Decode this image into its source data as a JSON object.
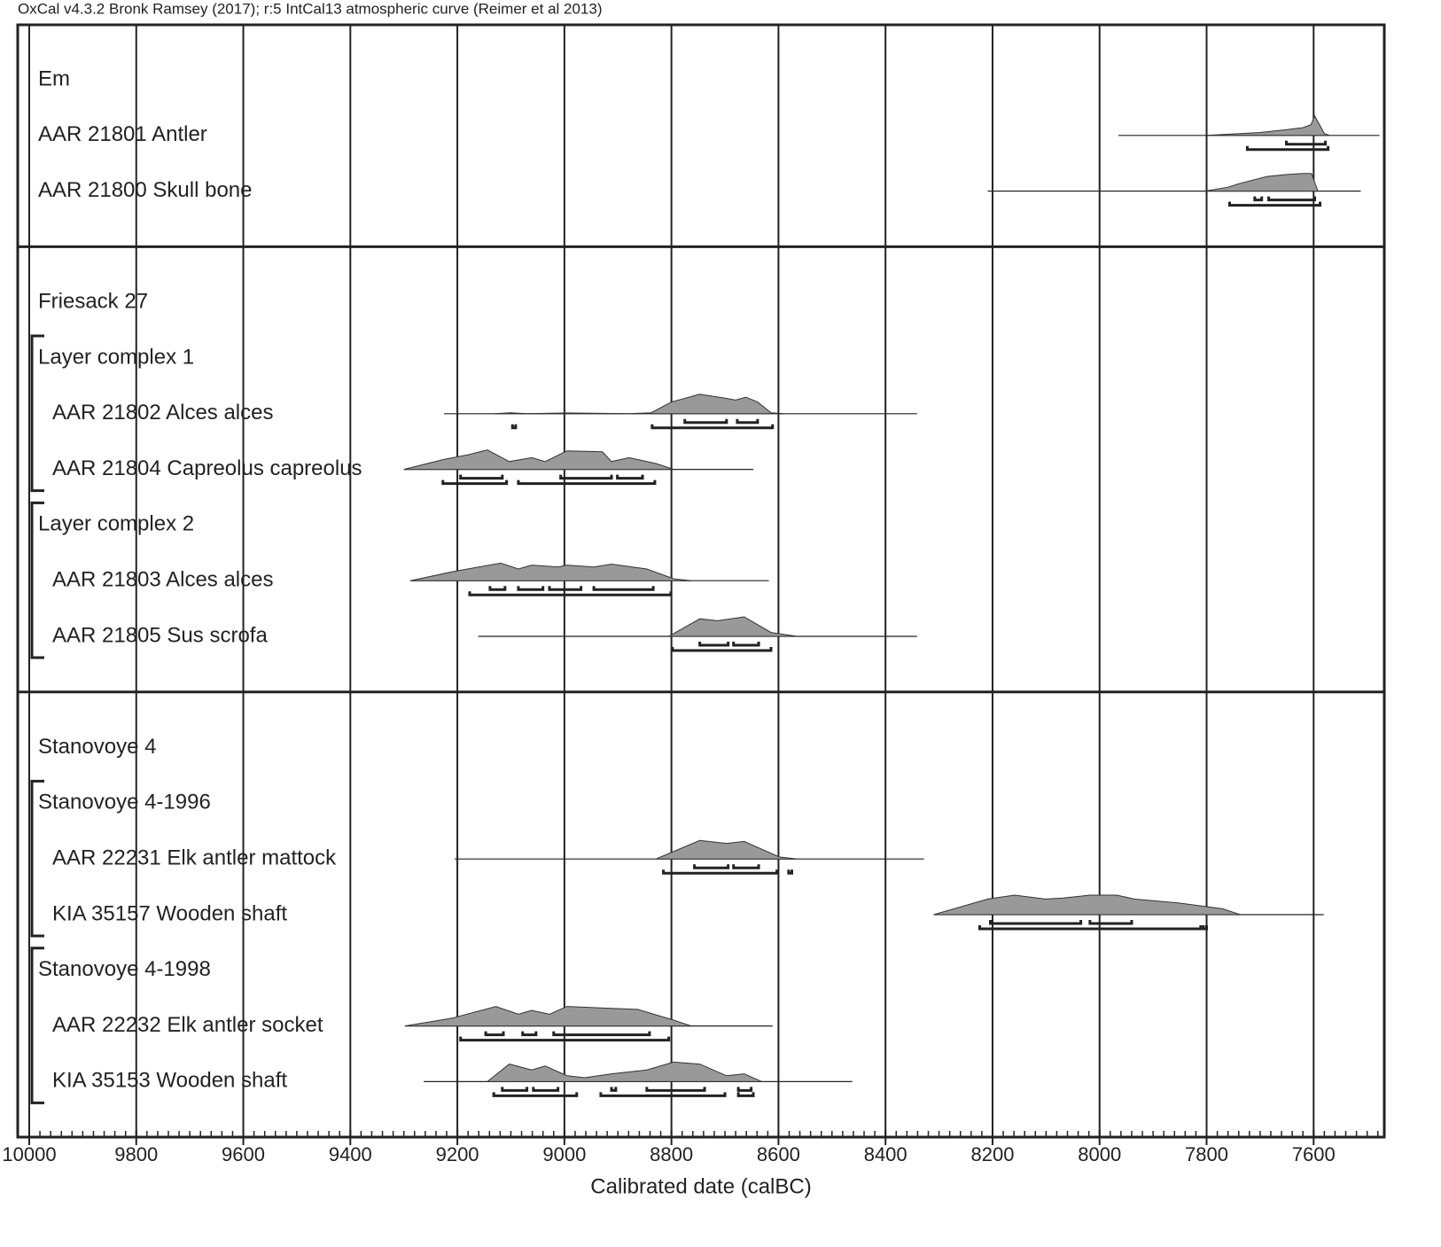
{
  "chart_data": {
    "type": "multiplot",
    "title": "OxCal v4.3.2 Bronk Ramsey (2017); r:5 IntCal13 atmospheric curve (Reimer et al 2013)",
    "xlabel": "Calibrated date (calBC)",
    "xlim": [
      10021.5,
      7468
    ],
    "xticks": [
      10000,
      9800,
      9600,
      9400,
      9200,
      9000,
      8800,
      8600,
      8400,
      8200,
      8000,
      7800,
      7600
    ],
    "minor_ticks_per_major": 10,
    "grid": true,
    "color": "#999999",
    "sections": [
      {
        "label": "Em",
        "samples": [
          {
            "label": "AAR 21801 Antler",
            "extent": [
              7965,
              7477
            ],
            "density": {
              "x": [
                7800,
                7700,
                7650,
                7620,
                7605,
                7598,
                7590,
                7580,
                7570
              ],
              "y": [
                0,
                0.15,
                0.3,
                0.4,
                0.55,
                1,
                0.6,
                0.1,
                0
              ]
            },
            "range_68": [
              [
                7651,
                7578
              ]
            ],
            "range_95": [
              [
                7724,
                7573
              ]
            ]
          },
          {
            "label": "AAR 21800 Skull bone",
            "extent": [
              8209,
              7512
            ],
            "density": {
              "x": [
                7803,
                7760,
                7737,
                7687,
                7650,
                7620,
                7604,
                7592
              ],
              "y": [
                0,
                0.2,
                0.4,
                0.75,
                0.85,
                0.9,
                0.9,
                0
              ]
            },
            "range_68": [
              [
                7710,
                7697
              ],
              [
                7684,
                7598
              ]
            ],
            "range_95": [
              [
                7757,
                7588
              ]
            ]
          }
        ]
      },
      {
        "label": "Friesack 27",
        "phases": [
          {
            "label": "Layer complex 1",
            "samples": [
              {
                "label": "AAR 21802 Alces alces",
                "extent": [
                  9225,
                  8341
                ],
                "density": {
                  "x": [
                    9130,
                    9100,
                    9070,
                    9000,
                    8880,
                    8838,
                    8800,
                    8747,
                    8700,
                    8680,
                    8661,
                    8639,
                    8614,
                    8590
                  ],
                  "y": [
                    0,
                    0.05,
                    0,
                    0.04,
                    0,
                    0.05,
                    0.6,
                    1,
                    0.8,
                    0.7,
                    0.85,
                    0.6,
                    0.05,
                    0
                  ]
                },
                "range_68": [
                  [
                    8775,
                    8697
                  ],
                  [
                    8677,
                    8639
                  ]
                ],
                "range_95": [
                  [
                    9097,
                    9091
                  ],
                  [
                    8836,
                    8611
                  ]
                ]
              },
              {
                "label": "AAR 21804 Capreolus capreolus",
                "extent": [
                  9300,
                  8647
                ],
                "density": {
                  "x": [
                    9300,
                    9227,
                    9180,
                    9144,
                    9103,
                    9061,
                    9036,
                    8995,
                    8929,
                    8912,
                    8879,
                    8829,
                    8796
                  ],
                  "y": [
                    0,
                    0.5,
                    0.75,
                    1,
                    0.4,
                    0.6,
                    0.4,
                    0.95,
                    0.9,
                    0.4,
                    0.6,
                    0.3,
                    0
                  ]
                },
                "range_68": [
                  [
                    9194,
                    9116
                  ],
                  [
                    9007,
                    8912
                  ],
                  [
                    8901,
                    8854
                  ]
                ],
                "range_95": [
                  [
                    9227,
                    9108
                  ],
                  [
                    9086,
                    8831
                  ]
                ]
              }
            ]
          },
          {
            "label": "Layer complex 2",
            "samples": [
              {
                "label": "AAR 21803 Alces alces",
                "extent": [
                  9288,
                  8618
                ],
                "density": {
                  "x": [
                    9288,
                    9202,
                    9119,
                    9086,
                    9061,
                    9012,
                    8995,
                    8945,
                    8912,
                    8846,
                    8796,
                    8763
                  ],
                  "y": [
                    0,
                    0.5,
                    0.9,
                    0.6,
                    0.8,
                    0.7,
                    0.8,
                    0.7,
                    0.85,
                    0.6,
                    0.1,
                    0
                  ]
                },
                "range_68": [
                  [
                    9139,
                    9111
                  ],
                  [
                    9086,
                    9040
                  ],
                  [
                    9028,
                    8969
                  ],
                  [
                    8945,
                    8834
                  ]
                ],
                "range_95": [
                  [
                    9177,
                    8801
                  ]
                ]
              },
              {
                "label": "AAR 21805 Sus scrofa",
                "extent": [
                  9161,
                  8341
                ],
                "density": {
                  "x": [
                    8805,
                    8747,
                    8714,
                    8664,
                    8614,
                    8565
                  ],
                  "y": [
                    0,
                    0.9,
                    0.8,
                    1,
                    0.2,
                    0
                  ]
                },
                "range_68": [
                  [
                    8747,
                    8694
                  ],
                  [
                    8684,
                    8637
                  ]
                ],
                "range_95": [
                  [
                    8798,
                    8614
                  ]
                ]
              }
            ]
          }
        ]
      },
      {
        "label": "Stanovoye 4",
        "phases": [
          {
            "label": "Stanovoye 4-1996",
            "samples": [
              {
                "label": "AAR 22231 Elk antler mattock",
                "extent": [
                  9205,
                  8328
                ],
                "density": {
                  "x": [
                    8829,
                    8747,
                    8697,
                    8664,
                    8631,
                    8598,
                    8565
                  ],
                  "y": [
                    0,
                    0.95,
                    0.8,
                    0.9,
                    0.5,
                    0.1,
                    0
                  ]
                },
                "range_68": [
                  [
                    8757,
                    8694
                  ],
                  [
                    8684,
                    8637
                  ]
                ],
                "range_95": [
                  [
                    8815,
                    8603
                  ],
                  [
                    8581,
                    8575
                  ]
                ]
              },
              {
                "label": "KIA 35157 Wooden shaft",
                "extent": [
                  8310,
                  7581
                ],
                "density": {
                  "x": [
                    8310,
                    8209,
                    8159,
                    8101,
                    8068,
                    8018,
                    7968,
                    7935,
                    7853,
                    7770,
                    7737
                  ],
                  "y": [
                    0,
                    0.8,
                    1,
                    0.8,
                    0.85,
                    1,
                    1,
                    0.8,
                    0.6,
                    0.3,
                    0
                  ]
                },
                "range_68": [
                  [
                    8204,
                    8035
                  ],
                  [
                    8018,
                    7940
                  ]
                ],
                "range_95": [
                  [
                    8224,
                    7811
                  ],
                  [
                    7806,
                    7800
                  ]
                ]
              }
            ]
          },
          {
            "label": "Stanovoye 4-1998",
            "samples": [
              {
                "label": "AAR 22232 Elk antler socket",
                "extent": [
                  9298,
                  8611
                ],
                "density": {
                  "x": [
                    9298,
                    9210,
                    9128,
                    9086,
                    9061,
                    9028,
                    8995,
                    8912,
                    8863,
                    8796,
                    8763
                  ],
                  "y": [
                    0,
                    0.4,
                    1,
                    0.6,
                    0.8,
                    0.6,
                    1,
                    0.9,
                    0.85,
                    0.3,
                    0
                  ]
                },
                "range_68": [
                  [
                    9147,
                    9114
                  ],
                  [
                    9078,
                    9053
                  ],
                  [
                    9020,
                    8841
                  ]
                ],
                "range_95": [
                  [
                    9194,
                    8805
                  ]
                ]
              },
              {
                "label": "KIA 35153 Wooden shaft",
                "extent": [
                  9263,
                  8462
                ],
                "density": {
                  "x": [
                    9144,
                    9103,
                    9061,
                    9036,
                    8995,
                    8962,
                    8912,
                    8846,
                    8796,
                    8747,
                    8697,
                    8664,
                    8631
                  ],
                  "y": [
                    0,
                    0.9,
                    0.6,
                    0.8,
                    0.3,
                    0.2,
                    0.4,
                    0.6,
                    1,
                    0.9,
                    0.3,
                    0.4,
                    0
                  ]
                },
                "range_68": [
                  [
                    9116,
                    9070
                  ],
                  [
                    9058,
                    9012
                  ],
                  [
                    8912,
                    8904
                  ],
                  [
                    8846,
                    8738
                  ],
                  [
                    8675,
                    8651
                  ]
                ],
                "range_95": [
                  [
                    9132,
                    8977
                  ],
                  [
                    8932,
                    8700
                  ],
                  [
                    8675,
                    8647
                  ]
                ]
              }
            ]
          }
        ]
      }
    ]
  }
}
